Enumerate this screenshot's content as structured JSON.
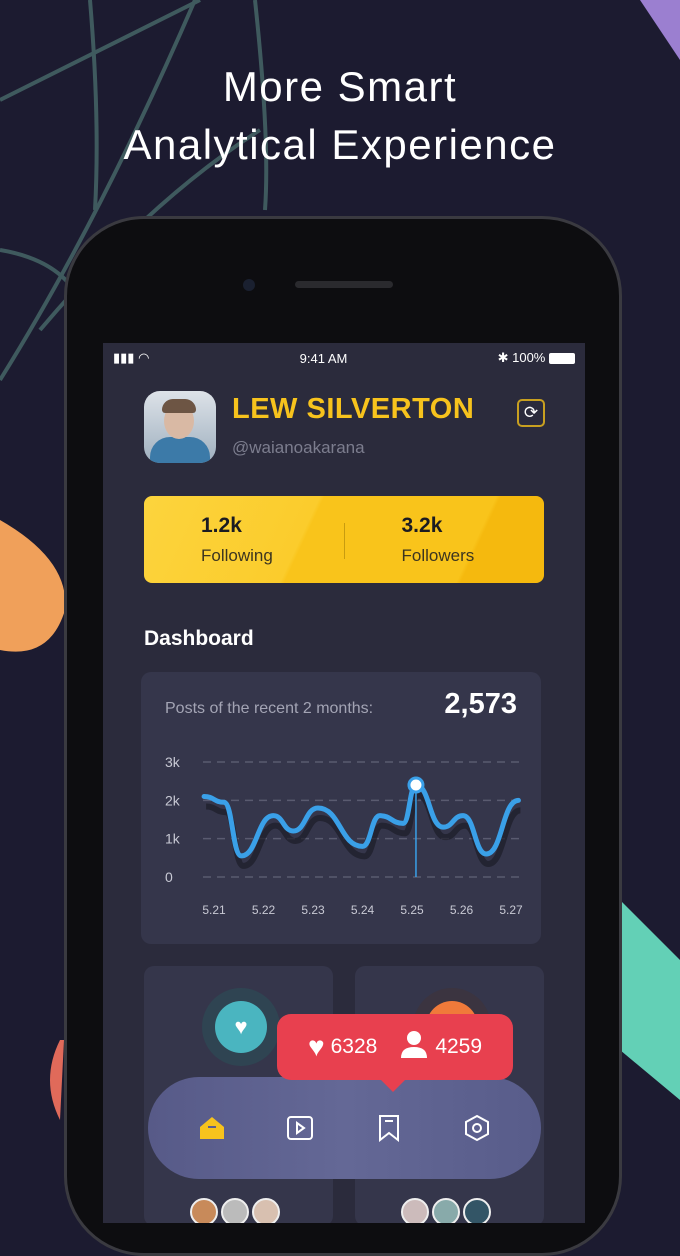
{
  "headline": {
    "line1": "More Smart",
    "line2": "Analytical Experience"
  },
  "status_bar": {
    "time": "9:41 AM",
    "battery": "100%"
  },
  "profile": {
    "name": "LEW SILVERTON",
    "handle": "@waianoakarana"
  },
  "stats": [
    {
      "value": "1.2k",
      "label": "Following"
    },
    {
      "value": "3.2k",
      "label": "Followers"
    }
  ],
  "dashboard": {
    "title": "Dashboard",
    "caption": "Posts of the recent 2 months:",
    "total": "2,573"
  },
  "chart_data": {
    "type": "line",
    "x_ticks": [
      "5.21",
      "5.22",
      "5.23",
      "5.24",
      "5.25",
      "5.26",
      "5.27"
    ],
    "y_ticks": [
      "0",
      "1k",
      "2k",
      "3k"
    ],
    "ylim": [
      0,
      3000
    ],
    "grid": "dashed horizontal",
    "line_color": "#3aa0e8",
    "series": [
      {
        "x": [
          -0.2,
          0.2,
          0.55,
          1.2,
          1.6,
          2.1,
          3.0,
          3.35,
          3.82,
          4.08,
          4.63,
          5.03,
          5.5,
          6.15
        ],
        "y": [
          2100,
          1950,
          550,
          1600,
          1200,
          1800,
          800,
          1600,
          1400,
          2400,
          1300,
          1600,
          600,
          2000
        ]
      }
    ],
    "highlight": {
      "x": 4.08,
      "y": 2400
    }
  },
  "tooltip": {
    "likes": "6328",
    "users": "4259"
  },
  "nav": {
    "items": [
      "home",
      "video",
      "bookmark",
      "settings"
    ],
    "active": "home"
  },
  "colors": {
    "accent": "#f7c31d",
    "tooltip": "#e8404f",
    "teal": "#4ab5c0",
    "orange": "#f07a3a"
  }
}
